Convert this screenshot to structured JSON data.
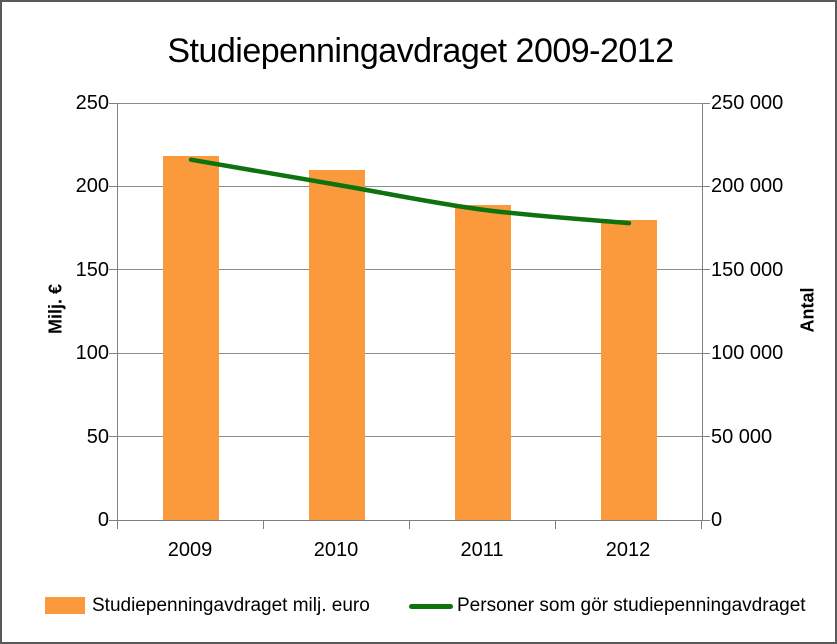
{
  "chart_data": {
    "type": "bar+line combo",
    "title": "Studiepenningavdraget 2009-2012",
    "categories": [
      "2009",
      "2010",
      "2011",
      "2012"
    ],
    "series": [
      {
        "name": "Studiepenningavdraget milj. euro",
        "type": "bar",
        "axis": "left",
        "color": "#FB9A3C",
        "values": [
          218,
          210,
          189,
          180
        ]
      },
      {
        "name": "Personer som gör studiepenningavdraget",
        "type": "line",
        "axis": "right",
        "color": "#0E730E",
        "smooth": true,
        "values": [
          216000,
          201000,
          186000,
          178000
        ]
      }
    ],
    "y_left": {
      "label": "Milj. €",
      "min": 0,
      "max": 250,
      "step": 50,
      "tick_labels": [
        "0",
        "50",
        "100",
        "150",
        "200",
        "250"
      ]
    },
    "y_right": {
      "label": "Antal",
      "min": 0,
      "max": 250000,
      "step": 50000,
      "tick_labels": [
        "0",
        "50 000",
        "100 000",
        "150 000",
        "200 000",
        "250 000"
      ]
    },
    "grid": true,
    "legend_position": "bottom"
  },
  "colors": {
    "bar_orange": "#FB9A3C",
    "line_green": "#0E730E",
    "gridline": "#8C8C8C",
    "axis": "#808080",
    "frame_border": "#595959",
    "background": "#FFFFFF",
    "text": "#000000"
  }
}
